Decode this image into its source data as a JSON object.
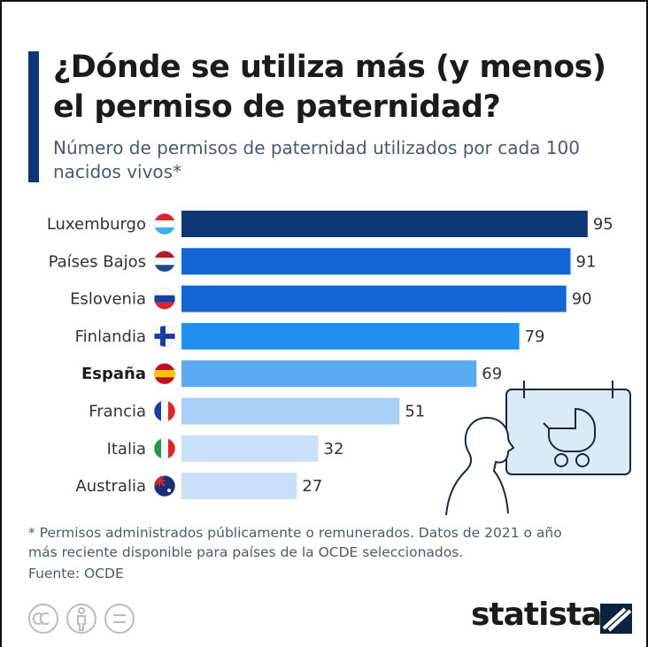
{
  "chart_data": {
    "type": "bar",
    "orientation": "horizontal",
    "title": "¿Dónde se utiliza más (y menos) el permiso de paternidad?",
    "subtitle": "Número de permisos de paternidad utilizados por cada 100 nacidos vivos*",
    "categories": [
      "Luxemburgo",
      "Países Bajos",
      "Eslovenia",
      "Finlandia",
      "España",
      "Francia",
      "Italia",
      "Australia"
    ],
    "values": [
      95,
      91,
      90,
      79,
      69,
      51,
      32,
      27
    ],
    "colors": [
      "#0c3772",
      "#1465d6",
      "#1465d6",
      "#1f8ff0",
      "#5caaf1",
      "#a6cef6",
      "#c9e0f8",
      "#c9e0f8"
    ],
    "bold_category": 4,
    "note": "* Permisos administrados públicamente o remunerados. Datos de 2021 o año más reciente disponible para países de la OCDE seleccionados.",
    "source": "Fuente: OCDE",
    "brand": "statista"
  }
}
